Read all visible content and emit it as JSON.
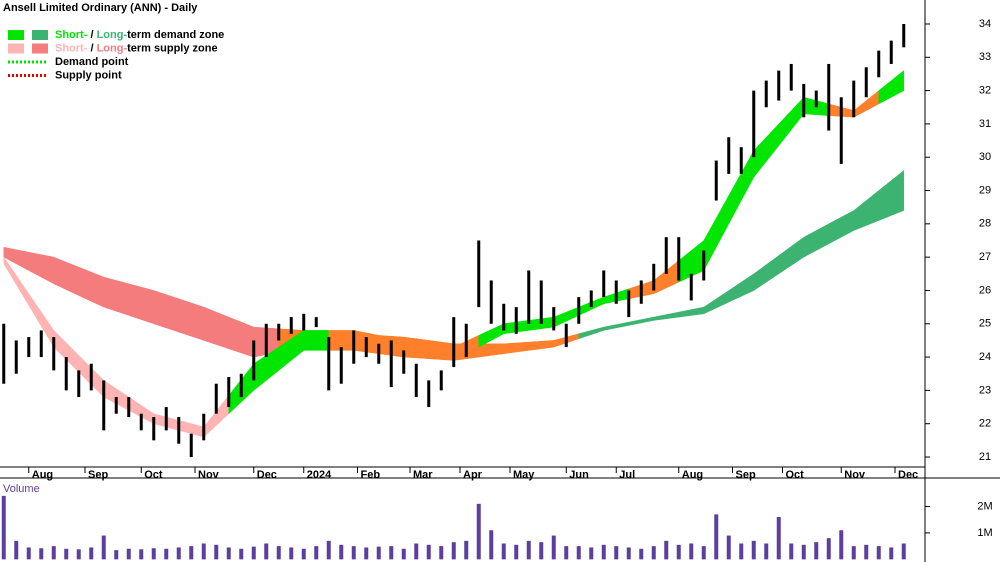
{
  "chart_data": {
    "type": "stock",
    "title": "Ansell Limited Ordinary (ANN) - Daily",
    "legend": [
      {
        "short": "Short-",
        "short_color": "#00e600",
        "sep": " / ",
        "long": "Long-",
        "long_color": "#3cb371",
        "rest": "term demand zone"
      },
      {
        "short": "Short-",
        "short_color": "#ffb3b3",
        "sep": " / ",
        "long": "Long-",
        "long_color": "#f47c7c",
        "rest": "term supply zone"
      },
      {
        "label": "Demand point",
        "color": "#00e600"
      },
      {
        "label": "Supply point",
        "color": "#e60000"
      }
    ],
    "xlim": [
      -0.3,
      73.7
    ],
    "xticks": [
      {
        "value": 2,
        "label": "Aug"
      },
      {
        "value": 6.5,
        "label": "Sep"
      },
      {
        "value": 11,
        "label": "Oct"
      },
      {
        "value": 15.3,
        "label": "Nov"
      },
      {
        "value": 20,
        "label": "Dec"
      },
      {
        "value": 24,
        "label": "2024"
      },
      {
        "value": 28.3,
        "label": "Feb"
      },
      {
        "value": 32.5,
        "label": "Mar"
      },
      {
        "value": 36.5,
        "label": "Apr"
      },
      {
        "value": 40.5,
        "label": "May"
      },
      {
        "value": 45,
        "label": "Jun"
      },
      {
        "value": 49,
        "label": "Jul"
      },
      {
        "value": 54,
        "label": "Aug"
      },
      {
        "value": 58.3,
        "label": "Sep"
      },
      {
        "value": 62.3,
        "label": "Oct"
      },
      {
        "value": 67,
        "label": "Nov"
      },
      {
        "value": 71.3,
        "label": "Dec"
      }
    ],
    "ylim": [
      20.7,
      34.72
    ],
    "yticks": [
      21,
      22,
      23,
      24,
      25,
      26,
      27,
      28,
      29,
      30,
      31,
      32,
      33,
      34
    ],
    "price_color": "#000000",
    "high": [
      25.0,
      24.5,
      24.6,
      24.8,
      24.6,
      24.0,
      23.6,
      23.8,
      23.3,
      22.8,
      22.8,
      22.3,
      22.2,
      22.5,
      22.2,
      21.7,
      22.3,
      23.2,
      23.4,
      23.5,
      24.5,
      25.0,
      25.0,
      25.2,
      25.3,
      25.2,
      24.6,
      24.3,
      24.8,
      24.6,
      24.4,
      24.5,
      24.2,
      23.8,
      23.3,
      23.6,
      25.2,
      25.0,
      27.5,
      26.3,
      25.6,
      25.5,
      26.6,
      26.3,
      25.5,
      25.0,
      25.8,
      26.0,
      26.6,
      26.3,
      26.0,
      26.3,
      26.8,
      27.6,
      27.6,
      26.5,
      27.2,
      29.9,
      30.6,
      30.3,
      32.0,
      32.3,
      32.6,
      32.8,
      32.2,
      32.0,
      32.8,
      31.8,
      32.3,
      32.7,
      33.2,
      33.5,
      34.0
    ],
    "low": [
      23.2,
      23.5,
      24.0,
      24.0,
      23.6,
      23.0,
      22.8,
      23.0,
      21.8,
      22.3,
      22.2,
      21.8,
      21.5,
      21.8,
      21.4,
      21.0,
      21.5,
      22.3,
      22.5,
      22.8,
      23.3,
      24.0,
      24.5,
      24.7,
      24.8,
      24.9,
      23.0,
      23.2,
      23.8,
      24.0,
      23.8,
      23.1,
      23.5,
      22.8,
      22.5,
      23.0,
      23.7,
      24.0,
      25.5,
      25.0,
      24.8,
      24.7,
      25.0,
      25.0,
      24.8,
      24.3,
      25.0,
      25.5,
      25.8,
      25.6,
      25.2,
      25.6,
      26.0,
      26.5,
      26.3,
      25.7,
      26.3,
      28.7,
      29.5,
      29.5,
      30.0,
      31.5,
      31.7,
      32.0,
      31.2,
      31.5,
      30.8,
      29.8,
      31.2,
      31.8,
      32.4,
      32.8,
      33.3
    ],
    "zone_x": [
      0,
      4,
      8,
      12,
      16,
      20,
      24,
      28,
      32,
      36,
      40,
      44,
      48,
      52,
      56,
      60,
      64,
      68,
      72
    ],
    "short_zone": {
      "upper": [
        27.0,
        24.8,
        23.3,
        22.3,
        21.9,
        23.8,
        24.8,
        24.8,
        24.5,
        24.3,
        25.0,
        25.2,
        25.8,
        26.3,
        27.5,
        30.2,
        31.8,
        31.4,
        32.6
      ],
      "lower": [
        26.8,
        24.3,
        22.8,
        22.0,
        21.6,
        23.0,
        24.2,
        24.2,
        24.0,
        23.9,
        24.7,
        24.9,
        25.6,
        25.9,
        26.6,
        29.4,
        31.3,
        31.2,
        32.0
      ],
      "colors": [
        "#ffb3b3",
        "#ffb3b3",
        "#ffb3b3",
        "#ffb3b3",
        "#ffb3b3",
        "#00e600",
        "#00e600",
        "#ff7f2a",
        "#ff7f2a",
        "#ff7f2a",
        "#00e600",
        "#00e600",
        "#00e600",
        "#ff7f2a",
        "#00e600",
        "#00e600",
        "#00e600",
        "#ff7f2a",
        "#00e600"
      ]
    },
    "long_zone": {
      "upper": [
        27.3,
        27.0,
        26.4,
        26.0,
        25.5,
        24.9,
        24.8,
        24.7,
        24.6,
        24.4,
        24.4,
        24.5,
        24.9,
        25.2,
        25.5,
        26.5,
        27.6,
        28.4,
        29.6
      ],
      "lower": [
        27.0,
        26.2,
        25.5,
        25.0,
        24.5,
        24.0,
        24.3,
        24.3,
        24.2,
        23.9,
        24.1,
        24.3,
        24.8,
        25.1,
        25.3,
        26.0,
        27.0,
        27.8,
        28.4
      ],
      "colors": [
        "#f47c7c",
        "#f47c7c",
        "#f47c7c",
        "#f47c7c",
        "#f47c7c",
        "#f47c7c",
        "#ff7f2a",
        "#ff7f2a",
        "#ff7f2a",
        "#ff7f2a",
        "#ff7f2a",
        "#ff7f2a",
        "#3cb371",
        "#3cb371",
        "#3cb371",
        "#3cb371",
        "#3cb371",
        "#3cb371",
        "#3cb371"
      ]
    },
    "volume": {
      "title": "Volume",
      "color": "#5a3fa0",
      "ylim": [
        -100000,
        3000000
      ],
      "yticks": [
        {
          "value": 2000000,
          "label": "2M"
        },
        {
          "value": 1000000,
          "label": "1M"
        }
      ],
      "values": [
        2400000,
        700000,
        450000,
        420000,
        500000,
        400000,
        380000,
        450000,
        900000,
        350000,
        400000,
        380000,
        420000,
        400000,
        450000,
        500000,
        600000,
        550000,
        450000,
        400000,
        480000,
        600000,
        500000,
        450000,
        400000,
        500000,
        700000,
        550000,
        500000,
        450000,
        480000,
        500000,
        400000,
        600000,
        550000,
        500000,
        650000,
        700000,
        2100000,
        1100000,
        600000,
        550000,
        700000,
        650000,
        900000,
        500000,
        500000,
        450000,
        550000,
        500000,
        450000,
        400000,
        500000,
        700000,
        550000,
        600000,
        500000,
        1700000,
        900000,
        600000,
        700000,
        600000,
        1600000,
        600000,
        550000,
        650000,
        800000,
        1100000,
        500000,
        550000,
        500000,
        450000,
        600000
      ]
    }
  }
}
